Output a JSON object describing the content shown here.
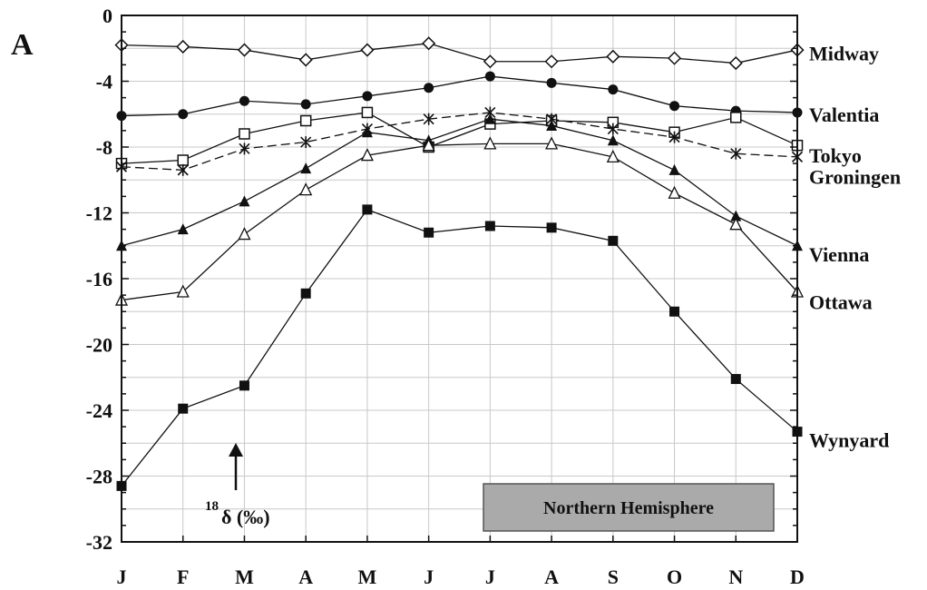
{
  "chart_data": {
    "type": "line",
    "panel_label": "A",
    "categories": [
      "J",
      "F",
      "M",
      "A",
      "M",
      "J",
      "J",
      "A",
      "S",
      "O",
      "N",
      "D"
    ],
    "ylim": [
      -32,
      0
    ],
    "yticks": [
      "0",
      "-4",
      "-8",
      "-12",
      "-16",
      "-20",
      "-24",
      "-28",
      "-32"
    ],
    "grid": true,
    "annotation": {
      "superscript": "18",
      "text": "δ (‰)"
    },
    "box_label": "Northern Hemisphere",
    "series": [
      {
        "name": "Midway",
        "marker": "diamond-open",
        "dash": false,
        "values": [
          -1.8,
          -1.9,
          -2.1,
          -2.7,
          -2.1,
          -1.7,
          -2.8,
          -2.8,
          -2.5,
          -2.6,
          -2.9,
          -2.1
        ]
      },
      {
        "name": "Valentia",
        "marker": "circle-filled",
        "dash": false,
        "values": [
          -6.1,
          -6.0,
          -5.2,
          -5.4,
          -4.9,
          -4.4,
          -3.7,
          -4.1,
          -4.5,
          -5.5,
          -5.8,
          -5.9
        ]
      },
      {
        "name": "Tokyo",
        "marker": "square-open",
        "dash": false,
        "values": [
          -9.0,
          -8.8,
          -7.2,
          -6.4,
          -5.9,
          -8.0,
          -6.6,
          -6.4,
          -6.5,
          -7.1,
          -6.2,
          -7.9
        ]
      },
      {
        "name": "Groningen",
        "marker": "star",
        "dash": true,
        "values": [
          -9.2,
          -9.4,
          -8.1,
          -7.7,
          -6.9,
          -6.3,
          -5.9,
          -6.3,
          -6.9,
          -7.4,
          -8.4,
          -8.6
        ]
      },
      {
        "name": "Vienna",
        "marker": "triangle-filled",
        "dash": false,
        "values": [
          -14.0,
          -13.0,
          -11.3,
          -9.3,
          -7.1,
          -7.6,
          -6.3,
          -6.7,
          -7.6,
          -9.4,
          -12.2,
          -14.0
        ]
      },
      {
        "name": "Ottawa",
        "marker": "triangle-open",
        "dash": false,
        "values": [
          -17.3,
          -16.8,
          -13.3,
          -10.6,
          -8.5,
          -7.9,
          -7.8,
          -7.8,
          -8.6,
          -10.8,
          -12.7,
          -16.8
        ]
      },
      {
        "name": "Wynyard",
        "marker": "square-filled",
        "dash": false,
        "values": [
          -28.6,
          -23.9,
          -22.5,
          -16.9,
          -11.8,
          -13.2,
          -12.8,
          -12.9,
          -13.7,
          -18.0,
          -22.1,
          -25.3
        ]
      }
    ]
  }
}
